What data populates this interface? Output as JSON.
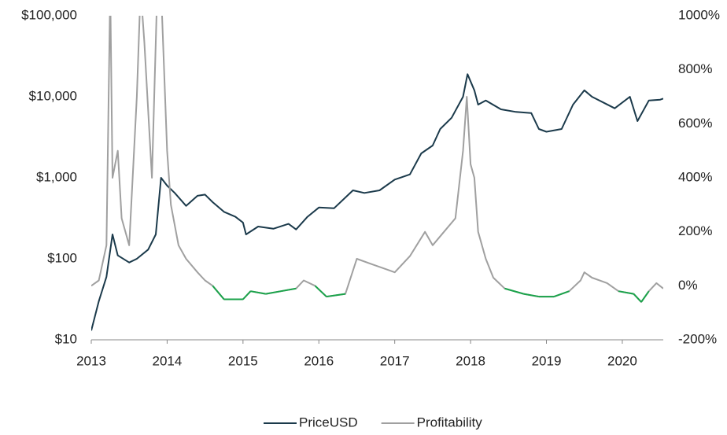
{
  "chart_data": {
    "type": "line",
    "xlim": [
      2013,
      2020.54
    ],
    "xticks": [
      2013,
      2014,
      2015,
      2016,
      2017,
      2018,
      2019,
      2020
    ],
    "ylim": [
      10,
      100000
    ],
    "log_y": true,
    "yticks": [
      {
        "value": 10,
        "label": "$10"
      },
      {
        "value": 100,
        "label": "$100"
      },
      {
        "value": 1000,
        "label": "$1,000"
      },
      {
        "value": 10000,
        "label": "$10,000"
      },
      {
        "value": 100000,
        "label": "$100,000"
      }
    ],
    "y2lim": [
      -200,
      1000
    ],
    "y2ticks": [
      {
        "value": -200,
        "label": "-200%"
      },
      {
        "value": 0,
        "label": "0%"
      },
      {
        "value": 200,
        "label": "200%"
      },
      {
        "value": 400,
        "label": "400%"
      },
      {
        "value": 600,
        "label": "600%"
      },
      {
        "value": 800,
        "label": "800%"
      },
      {
        "value": 1000,
        "label": "1000%"
      }
    ],
    "series": [
      {
        "name": "PriceUSD",
        "color": "#1b3a4b",
        "x": [
          2013.0,
          2013.1,
          2013.2,
          2013.28,
          2013.35,
          2013.5,
          2013.6,
          2013.75,
          2013.85,
          2013.92,
          2014.0,
          2014.1,
          2014.25,
          2014.4,
          2014.5,
          2014.6,
          2014.75,
          2014.9,
          2015.0,
          2015.04,
          2015.2,
          2015.4,
          2015.6,
          2015.7,
          2015.85,
          2016.0,
          2016.2,
          2016.45,
          2016.6,
          2016.8,
          2017.0,
          2017.2,
          2017.35,
          2017.5,
          2017.6,
          2017.75,
          2017.9,
          2017.96,
          2018.05,
          2018.1,
          2018.2,
          2018.4,
          2018.6,
          2018.8,
          2018.9,
          2019.0,
          2019.2,
          2019.35,
          2019.5,
          2019.6,
          2019.75,
          2019.9,
          2020.1,
          2020.2,
          2020.35,
          2020.5,
          2020.54
        ],
        "values": [
          13,
          30,
          60,
          200,
          110,
          90,
          100,
          130,
          200,
          1000,
          800,
          650,
          450,
          600,
          620,
          500,
          380,
          330,
          280,
          200,
          250,
          235,
          270,
          230,
          330,
          430,
          420,
          700,
          650,
          700,
          950,
          1100,
          2000,
          2500,
          4000,
          5500,
          10000,
          19000,
          12000,
          8000,
          9000,
          7000,
          6500,
          6300,
          4000,
          3700,
          4000,
          8000,
          12000,
          10000,
          8500,
          7200,
          10000,
          5000,
          9000,
          9200,
          9500
        ]
      },
      {
        "name": "Profitability",
        "color": "#a0a0a0",
        "below_zero_color": "#1aa34a",
        "axis": "y2",
        "x": [
          2013.0,
          2013.1,
          2013.2,
          2013.25,
          2013.28,
          2013.35,
          2013.4,
          2013.5,
          2013.6,
          2013.65,
          2013.7,
          2013.8,
          2013.87,
          2013.92,
          2014.0,
          2014.05,
          2014.15,
          2014.25,
          2014.4,
          2014.5,
          2014.6,
          2014.75,
          2015.0,
          2015.1,
          2015.3,
          2015.5,
          2015.7,
          2015.8,
          2015.95,
          2016.1,
          2016.35,
          2016.5,
          2016.7,
          2016.9,
          2017.0,
          2017.2,
          2017.4,
          2017.5,
          2017.65,
          2017.8,
          2017.9,
          2017.95,
          2018.0,
          2018.05,
          2018.1,
          2018.2,
          2018.3,
          2018.45,
          2018.7,
          2018.9,
          2019.1,
          2019.3,
          2019.45,
          2019.5,
          2019.6,
          2019.8,
          2019.95,
          2020.15,
          2020.25,
          2020.35,
          2020.45,
          2020.54
        ],
        "values": [
          0,
          20,
          150,
          1100,
          400,
          500,
          250,
          150,
          700,
          1100,
          900,
          400,
          1100,
          1100,
          500,
          300,
          150,
          100,
          50,
          20,
          0,
          -50,
          -50,
          -20,
          -30,
          -20,
          -10,
          20,
          0,
          -40,
          -30,
          100,
          80,
          60,
          50,
          110,
          200,
          150,
          200,
          250,
          500,
          700,
          450,
          400,
          200,
          100,
          30,
          -10,
          -30,
          -40,
          -40,
          -20,
          20,
          50,
          30,
          10,
          -20,
          -30,
          -60,
          -20,
          10,
          -10
        ]
      }
    ]
  }
}
